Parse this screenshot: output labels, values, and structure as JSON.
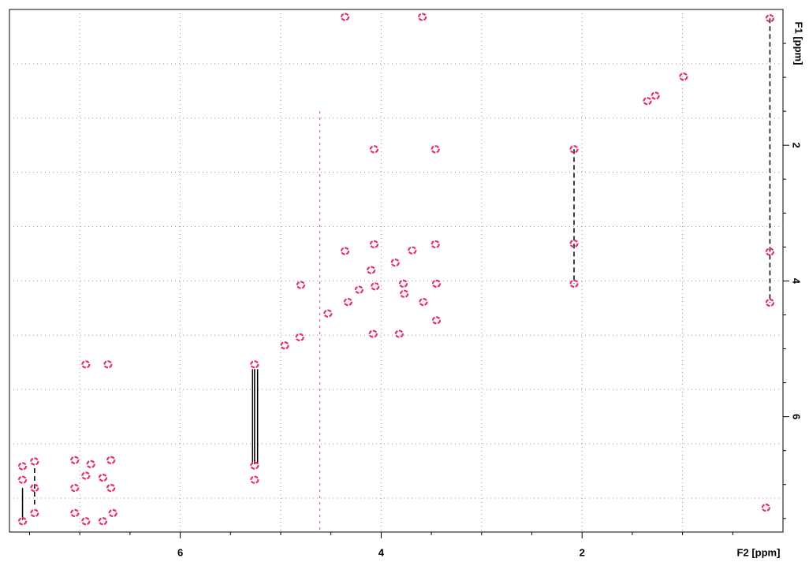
{
  "chart_data": {
    "type": "contour2d",
    "xlabel": "F2 [ppm]",
    "ylabel": "F1 [ppm]",
    "xlim": [
      7.7,
      0
    ],
    "ylim": [
      0,
      7.7
    ],
    "xticks": [
      6,
      4,
      2
    ],
    "yticks": [
      2,
      4,
      6
    ],
    "xminor": [
      7.5,
      7,
      6.5,
      5.5,
      5,
      4.5,
      3.5,
      3,
      2.5,
      1.5,
      1,
      0.5
    ],
    "yminor": [
      0.5,
      1,
      1.5,
      2.5,
      3,
      3.5,
      4.5,
      5,
      5.5,
      6.5,
      7,
      7.5
    ],
    "xgrid": [
      7,
      6,
      5,
      4,
      3,
      2,
      1
    ],
    "ygrid": [
      0.8,
      1.6,
      2.4,
      3.2,
      4.0,
      4.8,
      5.6,
      6.4,
      7.2
    ],
    "color": "#e3336c",
    "peaks": {
      "x": [
        4.36,
        3.59,
        0.13,
        0.99,
        1.35,
        1.27,
        4.07,
        3.46,
        2.08,
        4.07,
        4.36,
        3.46,
        2.08,
        0.13,
        2.08,
        0.13,
        4.8,
        4.06,
        3.78,
        3.45,
        3.77,
        3.58,
        3.45,
        4.08,
        3.82,
        3.69,
        3.86,
        4.1,
        4.22,
        4.33,
        4.53,
        4.81,
        4.96,
        6.94,
        6.72,
        5.26,
        5.26,
        5.26,
        7.57,
        7.57,
        7.45,
        7.45,
        7.45,
        7.57,
        7.05,
        6.89,
        6.69,
        7.05,
        6.94,
        6.77,
        6.69,
        7.05,
        6.94,
        6.77,
        6.67,
        0.17
      ],
      "y": [
        0.11,
        0.11,
        0.13,
        0.99,
        1.35,
        1.27,
        2.06,
        2.06,
        2.06,
        3.46,
        3.56,
        3.46,
        3.45,
        3.57,
        4.04,
        4.32,
        4.06,
        4.08,
        4.04,
        4.04,
        4.19,
        4.31,
        4.58,
        4.78,
        4.78,
        3.55,
        3.73,
        3.84,
        4.13,
        4.31,
        4.48,
        4.83,
        4.95,
        5.23,
        5.23,
        5.23,
        6.72,
        6.93,
        6.73,
        6.93,
        6.66,
        7.05,
        7.42,
        7.54,
        6.64,
        6.7,
        6.64,
        7.05,
        6.87,
        6.9,
        7.05,
        7.42,
        7.54,
        7.54,
        7.42,
        7.34
      ]
    },
    "connections": [
      {
        "x": 2.08,
        "y1": 2.06,
        "y2": 4.04,
        "style": "dashed"
      },
      {
        "x": 0.13,
        "y1": 0.13,
        "y2": 4.32,
        "style": "dashed"
      },
      {
        "x": 5.28,
        "y1": 5.3,
        "y2": 6.7,
        "style": "solid"
      },
      {
        "x": 5.26,
        "y1": 5.3,
        "y2": 6.7,
        "style": "solid"
      },
      {
        "x": 5.23,
        "y1": 5.3,
        "y2": 6.7,
        "style": "solid"
      },
      {
        "x": 7.57,
        "y1": 7.05,
        "y2": 7.52,
        "style": "solid"
      },
      {
        "x": 7.45,
        "y1": 6.76,
        "y2": 7.34,
        "style": "dashed"
      },
      {
        "x": 4.61,
        "y1": 1.5,
        "y2": 7.7,
        "style": "ridge"
      }
    ]
  }
}
